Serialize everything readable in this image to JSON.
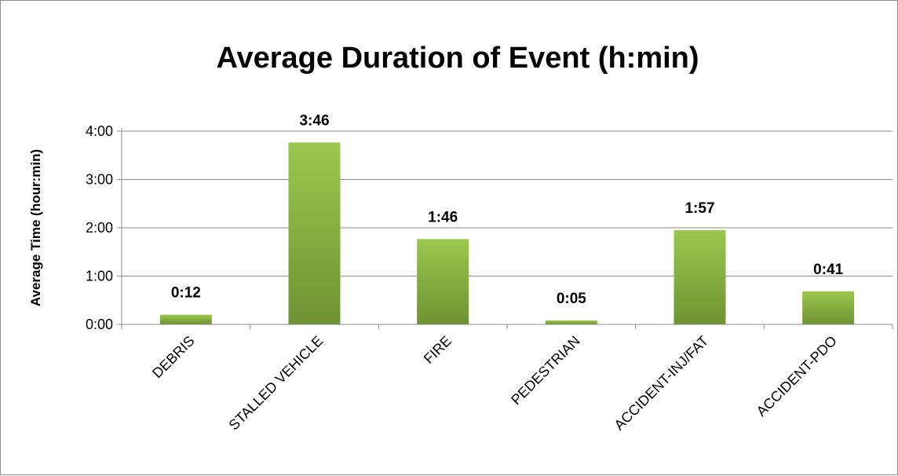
{
  "chart_data": {
    "type": "bar",
    "title": "Average Duration of Event (h:min)",
    "xlabel": "",
    "ylabel": "Average Time (hour:min)",
    "categories": [
      "DEBRIS",
      "STALLED VEHICLE",
      "FIRE",
      "PEDESTRIAN",
      "ACCIDENT-INJ/FAT",
      "ACCIDENT-PDO"
    ],
    "values_minutes": [
      12,
      226,
      106,
      5,
      117,
      41
    ],
    "data_labels": [
      "0:12",
      "3:46",
      "1:46",
      "0:05",
      "1:57",
      "0:41"
    ],
    "ylim_minutes": [
      0,
      240
    ],
    "y_ticks_minutes": [
      0,
      60,
      120,
      180,
      240
    ],
    "y_tick_labels": [
      "0:00",
      "1:00",
      "2:00",
      "3:00",
      "4:00"
    ],
    "grid": true,
    "legend": "none",
    "bar_color_top": "#9bc84e",
    "bar_color_bottom": "#6e9232"
  }
}
